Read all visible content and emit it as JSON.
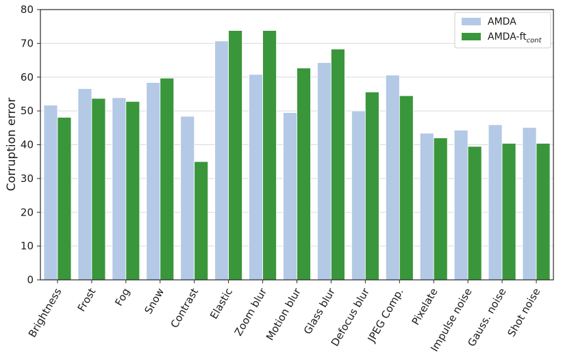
{
  "chart_data": {
    "type": "bar",
    "title": "",
    "xlabel": "",
    "ylabel": "Corruption error",
    "ylim": [
      0,
      80
    ],
    "yticks": [
      0,
      10,
      20,
      30,
      40,
      50,
      60,
      70,
      80
    ],
    "grid": "horizontal",
    "legend_position": "top-right",
    "categories": [
      "Brightness",
      "Frost",
      "Fog",
      "Snow",
      "Contrast",
      "Elastic",
      "Zoom blur",
      "Motion blur",
      "Glass blur",
      "Defocus blur",
      "JPEG Comp.",
      "Pixelate",
      "Impulse noise",
      "Gauss. noise",
      "Shot noise"
    ],
    "category_colors": [
      "#000000",
      "#000000",
      "#000000",
      "#000000",
      "#000000",
      "#5c0a0a",
      "#5c0a0a",
      "#5c0a0a",
      "#5c0a0a",
      "#5c0a0a",
      "#5c0a0a",
      "#e8730c",
      "#e8730c",
      "#e8730c",
      "#e8730c"
    ],
    "series": [
      {
        "name": "AMDA",
        "color": "#b3c9e6",
        "values": [
          51.7,
          56.6,
          53.9,
          58.4,
          48.4,
          70.7,
          60.8,
          49.5,
          64.3,
          50.0,
          60.6,
          43.4,
          44.3,
          45.9,
          45.1
        ]
      },
      {
        "name": "AMDA-ft",
        "name_subscript": "cont",
        "color": "#3a963a",
        "values": [
          48.1,
          53.7,
          52.8,
          59.7,
          35.0,
          73.8,
          73.8,
          62.7,
          68.3,
          55.6,
          54.5,
          42.0,
          39.5,
          40.4,
          40.4
        ]
      }
    ]
  }
}
